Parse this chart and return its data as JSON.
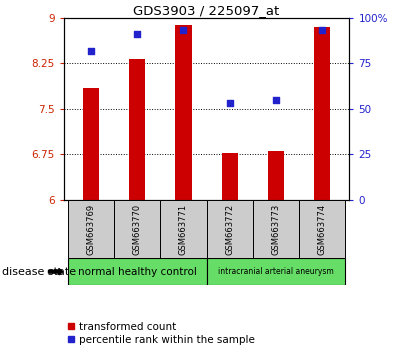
{
  "title": "GDS3903 / 225097_at",
  "samples": [
    "GSM663769",
    "GSM663770",
    "GSM663771",
    "GSM663772",
    "GSM663773",
    "GSM663774"
  ],
  "bar_values": [
    7.85,
    8.32,
    8.88,
    6.78,
    6.8,
    8.85
  ],
  "percentile_values": [
    82,
    91,
    93,
    53,
    55,
    93
  ],
  "bar_color": "#cc0000",
  "dot_color": "#2222cc",
  "ylim_left": [
    6,
    9
  ],
  "ylim_right": [
    0,
    100
  ],
  "yticks_left": [
    6,
    6.75,
    7.5,
    8.25,
    9
  ],
  "yticks_right": [
    0,
    25,
    50,
    75,
    100
  ],
  "grid_lines": [
    6.75,
    7.5,
    8.25
  ],
  "group_labels": [
    "normal healthy control",
    "intracranial arterial aneurysm"
  ],
  "group_ranges": [
    [
      0,
      2
    ],
    [
      3,
      5
    ]
  ],
  "group_color": "#66dd66",
  "group_box_color": "#cccccc",
  "disease_state_label": "disease state",
  "legend_bar_label": "transformed count",
  "legend_dot_label": "percentile rank within the sample",
  "bar_width": 0.35,
  "tick_label_color_left": "#cc2200",
  "tick_label_color_right": "#2222cc",
  "plot_bg_color": "#ffffff"
}
